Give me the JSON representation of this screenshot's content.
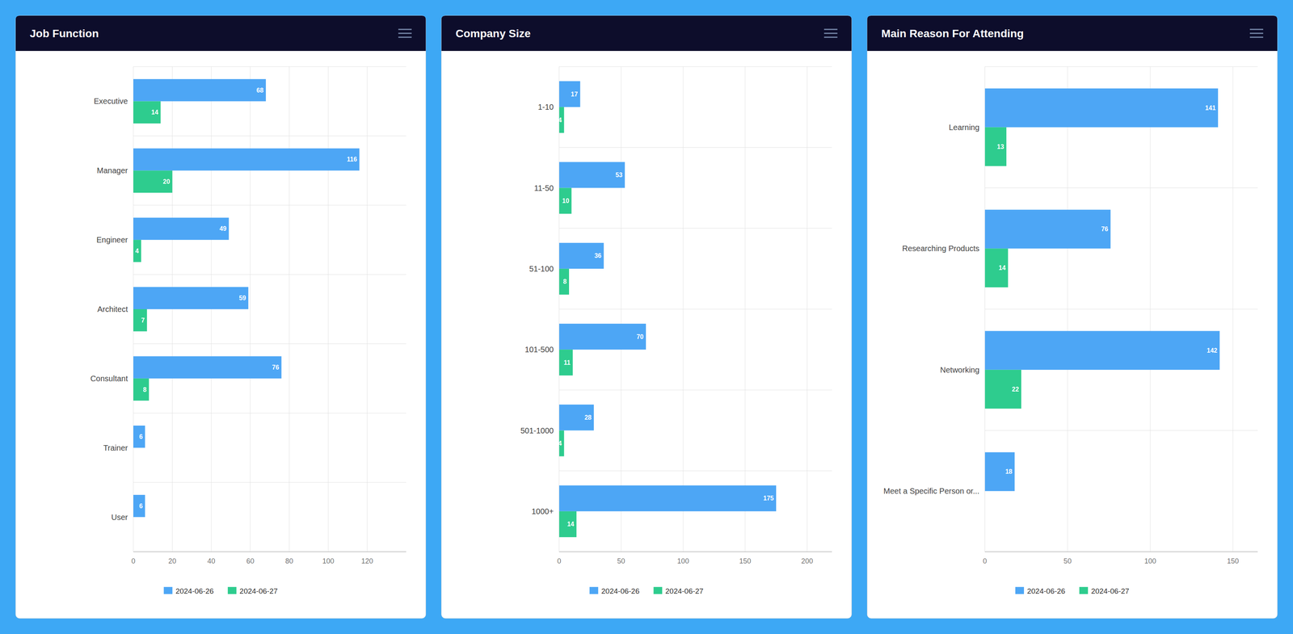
{
  "chart_data": [
    {
      "type": "bar",
      "orientation": "horizontal",
      "title": "Job Function",
      "categories": [
        "Executive",
        "Manager",
        "Engineer",
        "Architect",
        "Consultant",
        "Trainer",
        "User"
      ],
      "series": [
        {
          "name": "2024-06-26",
          "color": "#4da6f5",
          "values": [
            68,
            116,
            49,
            59,
            76,
            6,
            6
          ]
        },
        {
          "name": "2024-06-27",
          "color": "#2ecc8e",
          "values": [
            14,
            20,
            4,
            7,
            8,
            0,
            0
          ]
        }
      ],
      "xlim": [
        0,
        140
      ],
      "xticks": [
        0,
        20,
        40,
        60,
        80,
        100,
        120
      ],
      "grid": true,
      "data_labels": true,
      "legend": "bottom"
    },
    {
      "type": "bar",
      "orientation": "horizontal",
      "title": "Company Size",
      "categories": [
        "1-10",
        "11-50",
        "51-100",
        "101-500",
        "501-1000",
        "1000+"
      ],
      "series": [
        {
          "name": "2024-06-26",
          "color": "#4da6f5",
          "values": [
            17,
            53,
            36,
            70,
            28,
            175
          ]
        },
        {
          "name": "2024-06-27",
          "color": "#2ecc8e",
          "values": [
            4,
            10,
            8,
            11,
            4,
            14
          ]
        }
      ],
      "xlim": [
        0,
        220
      ],
      "xticks": [
        0,
        50,
        100,
        150,
        200
      ],
      "grid": true,
      "data_labels": true,
      "legend": "bottom"
    },
    {
      "type": "bar",
      "orientation": "horizontal",
      "title": "Main Reason For Attending",
      "categories": [
        "Learning",
        "Researching Products",
        "Networking",
        "Meet a Specific Person or..."
      ],
      "series": [
        {
          "name": "2024-06-26",
          "color": "#4da6f5",
          "values": [
            141,
            76,
            142,
            18
          ]
        },
        {
          "name": "2024-06-27",
          "color": "#2ecc8e",
          "values": [
            13,
            14,
            22,
            0
          ]
        }
      ],
      "xlim": [
        0,
        165
      ],
      "xticks": [
        0,
        50,
        100,
        150
      ],
      "grid": true,
      "data_labels": true,
      "legend": "bottom"
    }
  ]
}
